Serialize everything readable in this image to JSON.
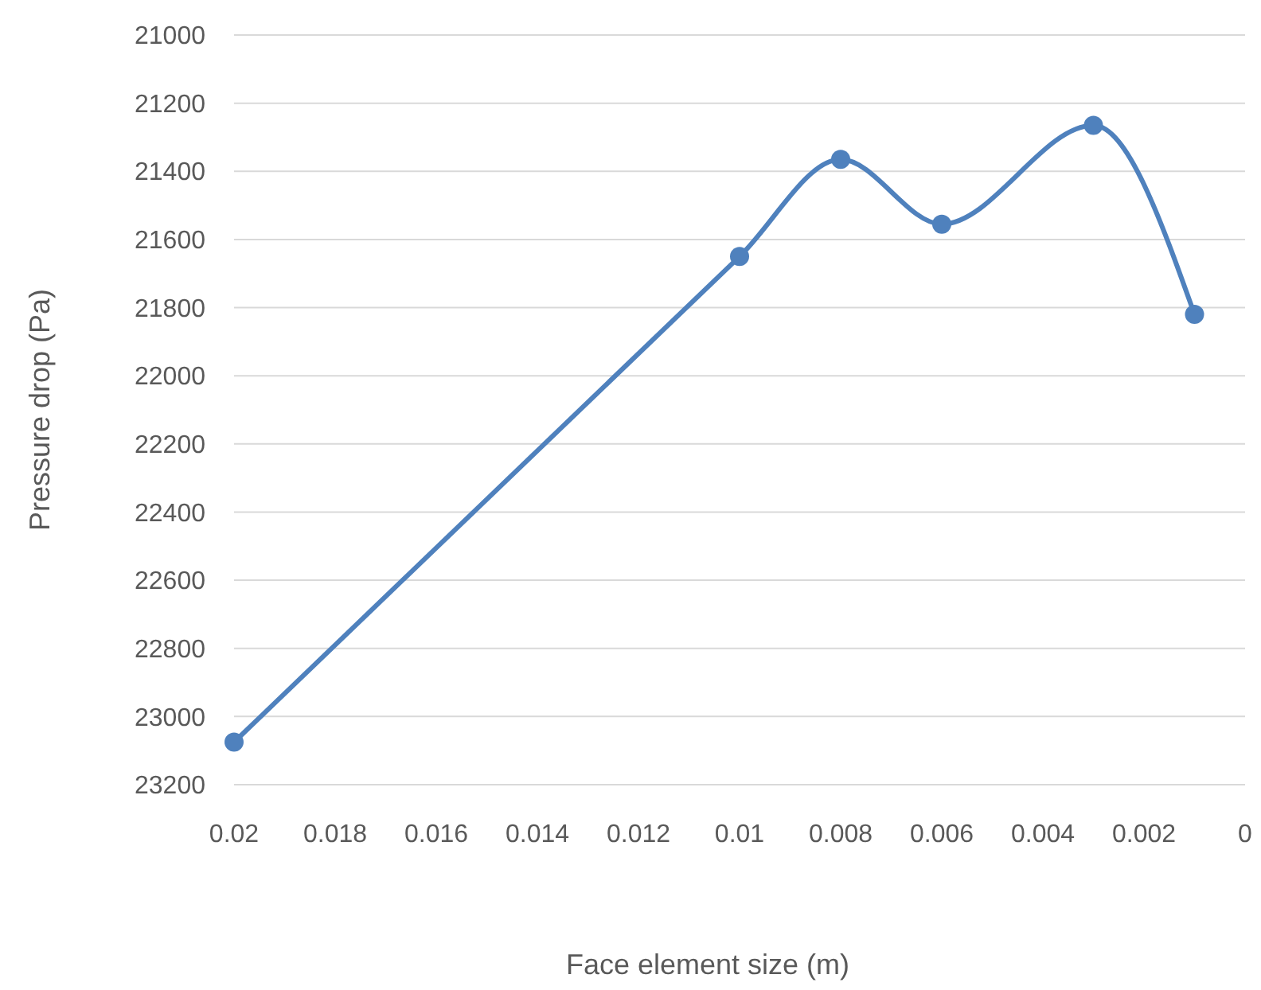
{
  "chart_data": {
    "type": "line",
    "xlabel": "Face element size (m)",
    "ylabel": "Pressure drop (Pa)",
    "x": [
      0.02,
      0.01,
      0.008,
      0.006,
      0.003,
      0.001
    ],
    "series": [
      {
        "color": "#4f81bd",
        "values": [
          23075,
          21650,
          21365,
          21555,
          21265,
          21820
        ]
      }
    ],
    "xlim": [
      0.02,
      0
    ],
    "xticks": [
      0.02,
      0.018,
      0.016,
      0.014,
      0.012,
      0.01,
      0.008,
      0.006,
      0.004,
      0.002,
      0
    ],
    "ylim": [
      23200,
      21000
    ],
    "yticks": [
      21000,
      21200,
      21400,
      21600,
      21800,
      22000,
      22200,
      22400,
      22600,
      22800,
      23000,
      23200
    ],
    "grid": "y",
    "marker": "circle"
  }
}
